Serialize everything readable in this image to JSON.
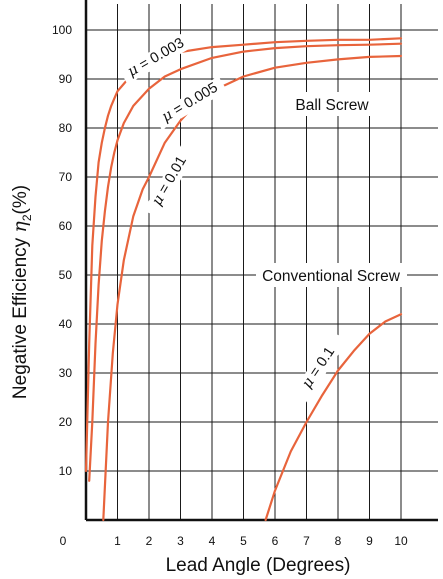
{
  "chart_data": {
    "type": "line",
    "title": "",
    "xlabel": "Lead Angle (Degrees)",
    "ylabel": {
      "main": "Negative Efficiency ",
      "symbol": "η",
      "sub": "2",
      "unit": "(%)"
    },
    "xlim": [
      0,
      11
    ],
    "ylim": [
      0,
      105
    ],
    "x_ticks": [
      0,
      1,
      2,
      3,
      4,
      5,
      6,
      7,
      8,
      9,
      10
    ],
    "y_ticks": [
      10,
      20,
      30,
      40,
      50,
      60,
      70,
      80,
      90,
      100
    ],
    "y_zero_label": "0",
    "grid": true,
    "line_color": "#e8643c",
    "series": [
      {
        "label": {
          "symbol": "μ",
          "text": " = 0.003"
        },
        "x": [
          0.0,
          0.1,
          0.2,
          0.3,
          0.4,
          0.5,
          0.6,
          0.7,
          0.8,
          0.9,
          1.0,
          1.2,
          1.4,
          1.6,
          2.0,
          2.5,
          3,
          4,
          5,
          6,
          7,
          8,
          9,
          10
        ],
        "y": [
          10,
          36,
          56,
          66,
          73,
          77,
          80,
          82.5,
          84.5,
          86,
          87.5,
          89,
          90.5,
          91.5,
          93,
          94.5,
          95.5,
          96.5,
          97,
          97.5,
          97.8,
          98,
          98,
          98.3
        ]
      },
      {
        "label": {
          "symbol": "μ",
          "text": " = 0.005"
        },
        "x": [
          0.1,
          0.2,
          0.3,
          0.4,
          0.5,
          0.6,
          0.7,
          0.8,
          0.9,
          1.0,
          1.2,
          1.5,
          2.0,
          2.5,
          3,
          4,
          5,
          6,
          7,
          8,
          9,
          10
        ],
        "y": [
          8,
          20,
          36,
          48,
          57,
          63,
          68,
          72,
          75,
          77.5,
          81,
          84.5,
          88,
          90.5,
          92,
          94.3,
          95.6,
          96.3,
          96.7,
          96.9,
          97,
          97.2
        ]
      },
      {
        "label": {
          "symbol": "μ",
          "text": " = 0.01"
        },
        "x": [
          0.55,
          0.7,
          0.85,
          1.0,
          1.2,
          1.5,
          1.8,
          2.0,
          2.5,
          3,
          3.5,
          4,
          5,
          6,
          7,
          8,
          9,
          10
        ],
        "y": [
          0,
          20,
          34,
          44,
          53,
          62,
          67.5,
          70,
          77,
          81.5,
          85,
          87.5,
          90.5,
          92.3,
          93.3,
          94,
          94.5,
          94.7
        ]
      },
      {
        "label": {
          "symbol": "μ",
          "text": " = 0.1"
        },
        "x": [
          5.7,
          6,
          6.5,
          7,
          7.5,
          8,
          8.5,
          9,
          9.5,
          10
        ],
        "y": [
          0,
          6,
          14,
          20,
          25.5,
          30.5,
          34.5,
          38,
          40.5,
          42
        ]
      }
    ],
    "annotations": [
      "Ball Screw",
      "Conventional Screw"
    ]
  }
}
